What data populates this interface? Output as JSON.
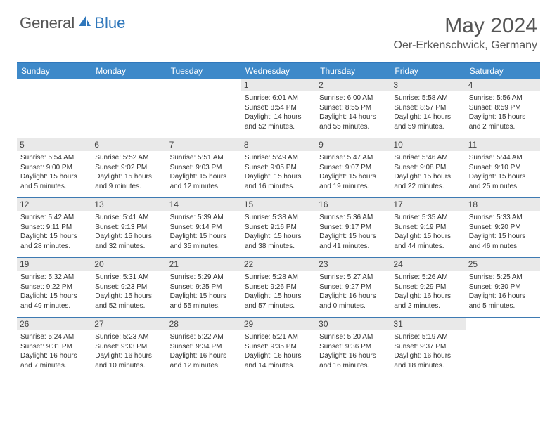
{
  "brand": {
    "part1": "General",
    "part2": "Blue"
  },
  "title": "May 2024",
  "location": "Oer-Erkenschwick, Germany",
  "colors": {
    "header_bar": "#3e89c9",
    "rule": "#3e7ab2",
    "daynum_bg": "#e9e9e9",
    "text": "#333333",
    "brand_blue": "#2f77bb"
  },
  "weekdays": [
    "Sunday",
    "Monday",
    "Tuesday",
    "Wednesday",
    "Thursday",
    "Friday",
    "Saturday"
  ],
  "weeks": [
    [
      null,
      null,
      null,
      {
        "n": "1",
        "sunrise": "6:01 AM",
        "sunset": "8:54 PM",
        "daylight": "14 hours and 52 minutes."
      },
      {
        "n": "2",
        "sunrise": "6:00 AM",
        "sunset": "8:55 PM",
        "daylight": "14 hours and 55 minutes."
      },
      {
        "n": "3",
        "sunrise": "5:58 AM",
        "sunset": "8:57 PM",
        "daylight": "14 hours and 59 minutes."
      },
      {
        "n": "4",
        "sunrise": "5:56 AM",
        "sunset": "8:59 PM",
        "daylight": "15 hours and 2 minutes."
      }
    ],
    [
      {
        "n": "5",
        "sunrise": "5:54 AM",
        "sunset": "9:00 PM",
        "daylight": "15 hours and 5 minutes."
      },
      {
        "n": "6",
        "sunrise": "5:52 AM",
        "sunset": "9:02 PM",
        "daylight": "15 hours and 9 minutes."
      },
      {
        "n": "7",
        "sunrise": "5:51 AM",
        "sunset": "9:03 PM",
        "daylight": "15 hours and 12 minutes."
      },
      {
        "n": "8",
        "sunrise": "5:49 AM",
        "sunset": "9:05 PM",
        "daylight": "15 hours and 16 minutes."
      },
      {
        "n": "9",
        "sunrise": "5:47 AM",
        "sunset": "9:07 PM",
        "daylight": "15 hours and 19 minutes."
      },
      {
        "n": "10",
        "sunrise": "5:46 AM",
        "sunset": "9:08 PM",
        "daylight": "15 hours and 22 minutes."
      },
      {
        "n": "11",
        "sunrise": "5:44 AM",
        "sunset": "9:10 PM",
        "daylight": "15 hours and 25 minutes."
      }
    ],
    [
      {
        "n": "12",
        "sunrise": "5:42 AM",
        "sunset": "9:11 PM",
        "daylight": "15 hours and 28 minutes."
      },
      {
        "n": "13",
        "sunrise": "5:41 AM",
        "sunset": "9:13 PM",
        "daylight": "15 hours and 32 minutes."
      },
      {
        "n": "14",
        "sunrise": "5:39 AM",
        "sunset": "9:14 PM",
        "daylight": "15 hours and 35 minutes."
      },
      {
        "n": "15",
        "sunrise": "5:38 AM",
        "sunset": "9:16 PM",
        "daylight": "15 hours and 38 minutes."
      },
      {
        "n": "16",
        "sunrise": "5:36 AM",
        "sunset": "9:17 PM",
        "daylight": "15 hours and 41 minutes."
      },
      {
        "n": "17",
        "sunrise": "5:35 AM",
        "sunset": "9:19 PM",
        "daylight": "15 hours and 44 minutes."
      },
      {
        "n": "18",
        "sunrise": "5:33 AM",
        "sunset": "9:20 PM",
        "daylight": "15 hours and 46 minutes."
      }
    ],
    [
      {
        "n": "19",
        "sunrise": "5:32 AM",
        "sunset": "9:22 PM",
        "daylight": "15 hours and 49 minutes."
      },
      {
        "n": "20",
        "sunrise": "5:31 AM",
        "sunset": "9:23 PM",
        "daylight": "15 hours and 52 minutes."
      },
      {
        "n": "21",
        "sunrise": "5:29 AM",
        "sunset": "9:25 PM",
        "daylight": "15 hours and 55 minutes."
      },
      {
        "n": "22",
        "sunrise": "5:28 AM",
        "sunset": "9:26 PM",
        "daylight": "15 hours and 57 minutes."
      },
      {
        "n": "23",
        "sunrise": "5:27 AM",
        "sunset": "9:27 PM",
        "daylight": "16 hours and 0 minutes."
      },
      {
        "n": "24",
        "sunrise": "5:26 AM",
        "sunset": "9:29 PM",
        "daylight": "16 hours and 2 minutes."
      },
      {
        "n": "25",
        "sunrise": "5:25 AM",
        "sunset": "9:30 PM",
        "daylight": "16 hours and 5 minutes."
      }
    ],
    [
      {
        "n": "26",
        "sunrise": "5:24 AM",
        "sunset": "9:31 PM",
        "daylight": "16 hours and 7 minutes."
      },
      {
        "n": "27",
        "sunrise": "5:23 AM",
        "sunset": "9:33 PM",
        "daylight": "16 hours and 10 minutes."
      },
      {
        "n": "28",
        "sunrise": "5:22 AM",
        "sunset": "9:34 PM",
        "daylight": "16 hours and 12 minutes."
      },
      {
        "n": "29",
        "sunrise": "5:21 AM",
        "sunset": "9:35 PM",
        "daylight": "16 hours and 14 minutes."
      },
      {
        "n": "30",
        "sunrise": "5:20 AM",
        "sunset": "9:36 PM",
        "daylight": "16 hours and 16 minutes."
      },
      {
        "n": "31",
        "sunrise": "5:19 AM",
        "sunset": "9:37 PM",
        "daylight": "16 hours and 18 minutes."
      },
      null
    ]
  ],
  "labels": {
    "sunrise": "Sunrise:",
    "sunset": "Sunset:",
    "daylight": "Daylight:"
  }
}
